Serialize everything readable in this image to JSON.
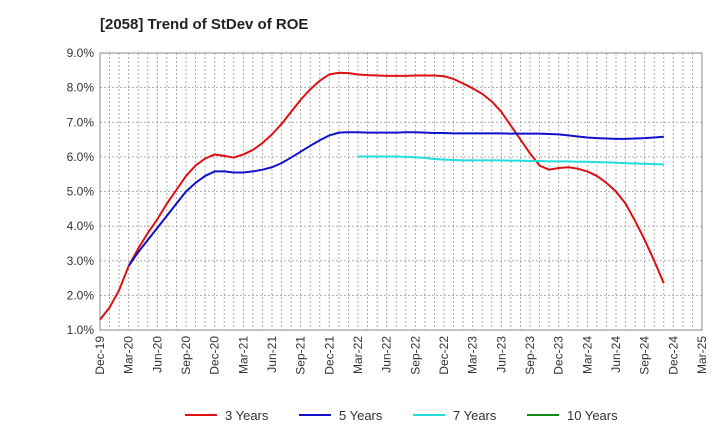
{
  "chart_data": {
    "type": "line",
    "title": "[2058]  Trend of StDev of ROE",
    "xlabel": "",
    "ylabel": "",
    "ylim": [
      1.0,
      9.0
    ],
    "y_ticks": [
      1.0,
      2.0,
      3.0,
      4.0,
      5.0,
      6.0,
      7.0,
      8.0,
      9.0
    ],
    "y_tick_labels": [
      "1.0%",
      "2.0%",
      "3.0%",
      "4.0%",
      "5.0%",
      "6.0%",
      "7.0%",
      "8.0%",
      "9.0%"
    ],
    "x_tick_labels": [
      "Dec-19",
      "Mar-20",
      "Jun-20",
      "Sep-20",
      "Dec-20",
      "Mar-21",
      "Jun-21",
      "Sep-21",
      "Dec-21",
      "Mar-22",
      "Jun-22",
      "Sep-22",
      "Dec-22",
      "Mar-23",
      "Jun-23",
      "Sep-23",
      "Dec-23",
      "Mar-24",
      "Jun-24",
      "Sep-24",
      "Dec-24",
      "Mar-25"
    ],
    "grid": true,
    "legend_position": "bottom",
    "series": [
      {
        "name": "3 Years",
        "color": "#dd1111",
        "values": [
          1.3,
          1.65,
          2.15,
          2.85,
          3.35,
          3.8,
          4.2,
          4.65,
          5.05,
          5.45,
          5.75,
          5.95,
          6.07,
          6.03,
          5.98,
          6.07,
          6.2,
          6.4,
          6.65,
          6.95,
          7.3,
          7.65,
          7.95,
          8.2,
          8.38,
          8.43,
          8.42,
          8.38,
          8.36,
          8.35,
          8.34,
          8.34,
          8.34,
          8.35,
          8.35,
          8.35,
          8.33,
          8.25,
          8.12,
          7.98,
          7.82,
          7.6,
          7.3,
          6.9,
          6.5,
          6.1,
          5.75,
          5.63,
          5.68,
          5.7,
          5.66,
          5.58,
          5.45,
          5.25,
          5.0,
          4.65,
          4.15,
          3.6,
          3.0,
          2.35
        ]
      },
      {
        "name": "5 Years",
        "color": "#1111cc",
        "values": [
          null,
          null,
          null,
          2.85,
          3.25,
          3.6,
          3.95,
          4.3,
          4.65,
          5.0,
          5.25,
          5.45,
          5.58,
          5.58,
          5.55,
          5.55,
          5.58,
          5.63,
          5.7,
          5.82,
          5.98,
          6.15,
          6.32,
          6.48,
          6.62,
          6.7,
          6.71,
          6.71,
          6.7,
          6.7,
          6.7,
          6.7,
          6.71,
          6.71,
          6.7,
          6.69,
          6.69,
          6.68,
          6.68,
          6.68,
          6.68,
          6.68,
          6.68,
          6.67,
          6.67,
          6.67,
          6.67,
          6.66,
          6.65,
          6.62,
          6.59,
          6.56,
          6.54,
          6.53,
          6.52,
          6.52,
          6.53,
          6.54,
          6.56,
          6.58
        ]
      },
      {
        "name": "7 Years",
        "color": "#22dddd",
        "values": [
          null,
          null,
          null,
          null,
          null,
          null,
          null,
          null,
          null,
          null,
          null,
          null,
          null,
          null,
          null,
          null,
          null,
          null,
          null,
          null,
          null,
          null,
          null,
          null,
          null,
          null,
          null,
          6.01,
          6.01,
          6.01,
          6.01,
          6.01,
          6.0,
          5.99,
          5.97,
          5.94,
          5.92,
          5.91,
          5.9,
          5.9,
          5.9,
          5.9,
          5.9,
          5.89,
          5.89,
          5.88,
          5.88,
          5.87,
          5.87,
          5.87,
          5.86,
          5.86,
          5.85,
          5.84,
          5.83,
          5.82,
          5.81,
          5.8,
          5.79,
          5.78
        ]
      },
      {
        "name": "10 Years",
        "color": "#118811",
        "values": []
      }
    ]
  }
}
